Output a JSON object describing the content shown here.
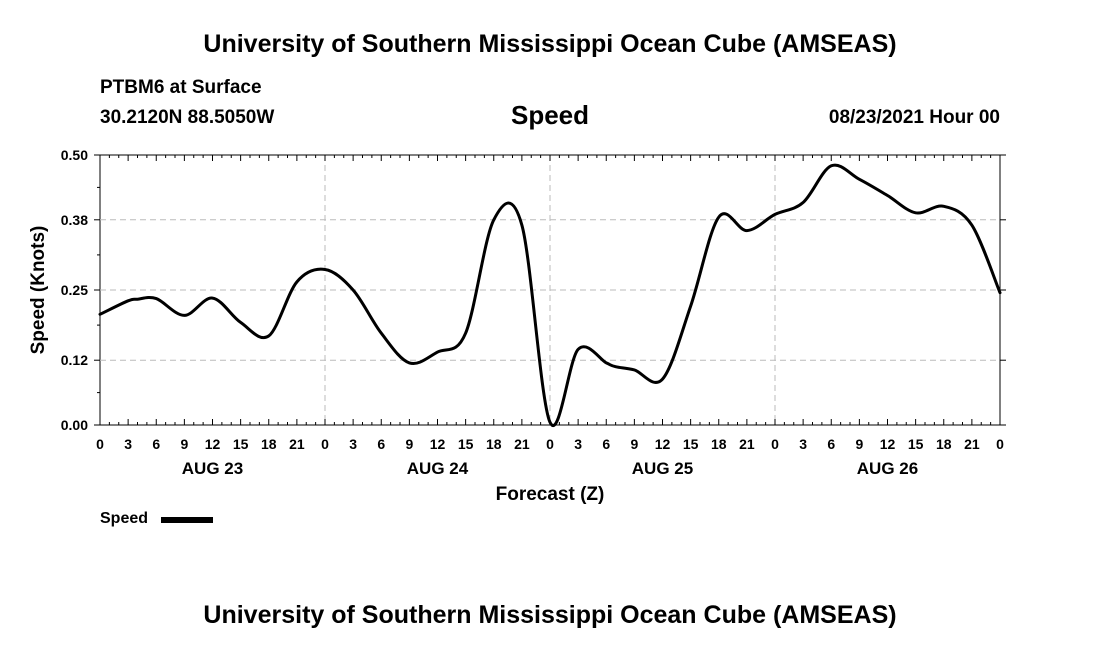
{
  "header": {
    "title_top": "University of Southern Mississippi Ocean Cube (AMSEAS)",
    "title_bottom": "University of Southern Mississippi Ocean Cube (AMSEAS)",
    "station": "PTBM6 at Surface",
    "coords": "30.2120N  88.5050W",
    "variable": "Speed",
    "datetime": "08/23/2021 Hour 00"
  },
  "chart_data": {
    "type": "line",
    "title": "Speed",
    "xlabel": "Forecast (Z)",
    "ylabel": "Speed (Knots)",
    "xlim": [
      0,
      96
    ],
    "ylim": [
      0,
      0.5
    ],
    "yticks": [
      "0.00",
      "0.12",
      "0.25",
      "0.38",
      "0.50"
    ],
    "xtick_labels": [
      "0",
      "3",
      "6",
      "9",
      "12",
      "15",
      "18",
      "21",
      "0",
      "3",
      "6",
      "9",
      "12",
      "15",
      "18",
      "21",
      "0",
      "3",
      "6",
      "9",
      "12",
      "15",
      "18",
      "21",
      "0",
      "3",
      "6",
      "9",
      "12",
      "15",
      "18",
      "21",
      "0"
    ],
    "day_labels": [
      "AUG 23",
      "AUG 24",
      "AUG 25",
      "AUG 26"
    ],
    "grid": true,
    "legend": "bottom-left",
    "series": [
      {
        "name": "Speed",
        "color": "#000000",
        "x": [
          0,
          3,
          4,
          6,
          9,
          12,
          15,
          18,
          21,
          24,
          27,
          30,
          33,
          36,
          39,
          42,
          45,
          48,
          51,
          54,
          55,
          57,
          60,
          63,
          66,
          69,
          72,
          75,
          78,
          81,
          84,
          87,
          90,
          93,
          96
        ],
        "values": [
          0.205,
          0.23,
          0.233,
          0.234,
          0.203,
          0.235,
          0.19,
          0.165,
          0.265,
          0.288,
          0.25,
          0.17,
          0.115,
          0.135,
          0.17,
          0.38,
          0.37,
          0.005,
          0.14,
          0.115,
          0.108,
          0.102,
          0.085,
          0.22,
          0.385,
          0.36,
          0.39,
          0.412,
          0.48,
          0.455,
          0.425,
          0.393,
          0.405,
          0.37,
          0.245
        ]
      }
    ]
  }
}
